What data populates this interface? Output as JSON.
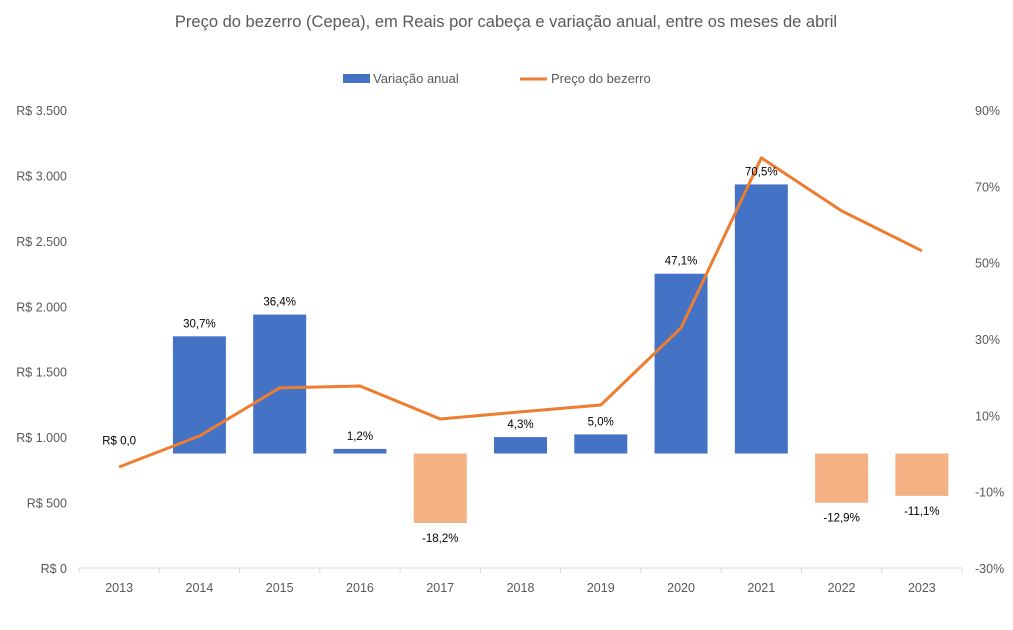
{
  "chart_data": {
    "type": "bar+line",
    "title": "Preço do bezerro (Cepea), em Reais por cabeça e variação anual, entre os meses de abril",
    "categories": [
      "2013",
      "2014",
      "2015",
      "2016",
      "2017",
      "2018",
      "2019",
      "2020",
      "2021",
      "2022",
      "2023"
    ],
    "series": [
      {
        "name": "Variação anual",
        "type": "bar",
        "axis": "right",
        "values": [
          0.0,
          30.7,
          36.4,
          1.2,
          -18.2,
          4.3,
          5.0,
          47.1,
          70.5,
          -12.9,
          -11.1
        ],
        "labels": [
          "R$ 0,0",
          "30,7%",
          "36,4%",
          "1,2%",
          "-18,2%",
          "4,3%",
          "5,0%",
          "47,1%",
          "70,5%",
          "-12,9%",
          "-11,1%"
        ],
        "color_positive": "#4472C4",
        "color_negative": "#F4B183"
      },
      {
        "name": "Preço do bezerro",
        "type": "line",
        "axis": "left",
        "values": [
          772,
          1009,
          1376,
          1391,
          1139,
          1193,
          1246,
          1835,
          3134,
          2729,
          2424
        ],
        "color": "#ED7D31"
      }
    ],
    "y_left": {
      "ylim": [
        0,
        3500
      ],
      "ticks": [
        "R$ 0",
        "R$ 500",
        "R$ 1.000",
        "R$ 1.500",
        "R$ 2.000",
        "R$ 2.500",
        "R$ 3.000",
        "R$ 3.500"
      ],
      "tick_values": [
        0,
        500,
        1000,
        1500,
        2000,
        2500,
        3000,
        3500
      ]
    },
    "y_right": {
      "ylim": [
        -30,
        90
      ],
      "ticks": [
        "-30%",
        "-10%",
        "10%",
        "30%",
        "50%",
        "70%",
        "90%"
      ],
      "tick_values": [
        -30,
        -10,
        10,
        30,
        50,
        70,
        90
      ]
    },
    "legend": {
      "position": "top",
      "entries": [
        "Variação anual",
        "Preço do bezerro"
      ]
    },
    "grid": false
  }
}
